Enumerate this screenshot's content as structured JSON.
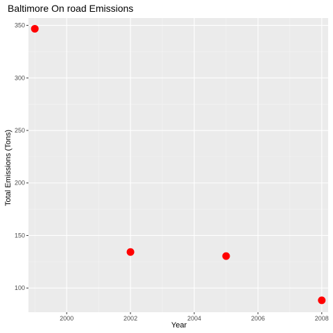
{
  "chart_data": {
    "type": "scatter",
    "title": "Baltimore On road Emissions",
    "xlabel": "Year",
    "ylabel": "Total Emissions (Tons)",
    "xlim": [
      1998.8,
      2008.2
    ],
    "ylim": [
      77,
      357
    ],
    "x_ticks": [
      2000,
      2002,
      2004,
      2006,
      2008
    ],
    "y_ticks": [
      100,
      150,
      200,
      250,
      300,
      350
    ],
    "grid": true,
    "legend": "none",
    "series": [
      {
        "color": "#ff0000",
        "points": [
          {
            "x": 1999,
            "y": 346.8
          },
          {
            "x": 2002,
            "y": 134.3
          },
          {
            "x": 2005,
            "y": 130.4
          },
          {
            "x": 2008,
            "y": 88.3
          }
        ]
      }
    ]
  },
  "colors": {
    "panel_background": "#ebebeb",
    "grid_major": "#ffffff",
    "grid_minor": "#f4f4f4",
    "tick_mark": "#333333"
  }
}
